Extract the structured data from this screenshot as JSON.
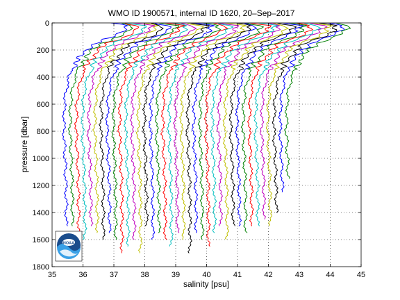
{
  "chart_data": {
    "type": "line",
    "title": "WMO ID 1900571, internal ID 1620, 20–Sep–2017",
    "xlabel": "salinity [psu]",
    "ylabel": "pressure [dbar]",
    "xlim": [
      35,
      45
    ],
    "ylim": [
      0,
      1800
    ],
    "y_inverted": true,
    "grid": true,
    "xticks": [
      35,
      36,
      37,
      38,
      39,
      40,
      41,
      42,
      43,
      44,
      45
    ],
    "yticks": [
      0,
      200,
      400,
      600,
      800,
      1000,
      1200,
      1400,
      1600,
      1800
    ],
    "colors": [
      "#0000ff",
      "#008000",
      "#ff0000",
      "#00bfbf",
      "#bf00bf",
      "#bfbf00",
      "#000000"
    ],
    "profile_offset_psu": 0.2,
    "base_profile": [
      [
        0,
        36.9
      ],
      [
        20,
        37.4
      ],
      [
        60,
        37.3
      ],
      [
        100,
        37.0
      ],
      [
        150,
        36.4
      ],
      [
        200,
        36.1
      ],
      [
        300,
        35.75
      ],
      [
        400,
        35.55
      ],
      [
        500,
        35.45
      ],
      [
        600,
        35.4
      ],
      [
        800,
        35.38
      ],
      [
        1000,
        35.42
      ],
      [
        1200,
        35.45
      ],
      [
        1400,
        35.46
      ],
      [
        1500,
        35.46
      ]
    ],
    "profiles": [
      {
        "offset": 0,
        "max_p": 1500
      },
      {
        "offset": 1,
        "max_p": 1500
      },
      {
        "offset": 2,
        "max_p": 1550
      },
      {
        "offset": 3,
        "max_p": 1600
      },
      {
        "offset": 4,
        "max_p": 1500
      },
      {
        "offset": 5,
        "max_p": 1550
      },
      {
        "offset": 6,
        "max_p": 1600
      },
      {
        "offset": 7,
        "max_p": 1550
      },
      {
        "offset": 8,
        "max_p": 1600
      },
      {
        "offset": 9,
        "max_p": 1700
      },
      {
        "offset": 10,
        "max_p": 1650
      },
      {
        "offset": 11,
        "max_p": 1600
      },
      {
        "offset": 12,
        "max_p": 1700
      },
      {
        "offset": 13,
        "max_p": 1500
      },
      {
        "offset": 14,
        "max_p": 1600
      },
      {
        "offset": 15,
        "max_p": 1550
      },
      {
        "offset": 16,
        "max_p": 1600
      },
      {
        "offset": 17,
        "max_p": 1650
      },
      {
        "offset": 18,
        "max_p": 1550
      },
      {
        "offset": 19,
        "max_p": 1600
      },
      {
        "offset": 20,
        "max_p": 1700
      },
      {
        "offset": 21,
        "max_p": 1550
      },
      {
        "offset": 22,
        "max_p": 1600
      },
      {
        "offset": 23,
        "max_p": 1650
      },
      {
        "offset": 24,
        "max_p": 1550
      },
      {
        "offset": 25,
        "max_p": 1500
      },
      {
        "offset": 26,
        "max_p": 1600
      },
      {
        "offset": 27,
        "max_p": 1500
      },
      {
        "offset": 28,
        "max_p": 1500
      },
      {
        "offset": 29,
        "max_p": 1550
      },
      {
        "offset": 30,
        "max_p": 1500
      },
      {
        "offset": 31,
        "max_p": 1500
      },
      {
        "offset": 32,
        "max_p": 1450
      },
      {
        "offset": 33,
        "max_p": 1500
      },
      {
        "offset": 34,
        "max_p": 1400
      },
      {
        "offset": 35,
        "max_p": 1250
      },
      {
        "offset": 36,
        "max_p": 1150
      }
    ],
    "logo": "noaa-logo"
  }
}
